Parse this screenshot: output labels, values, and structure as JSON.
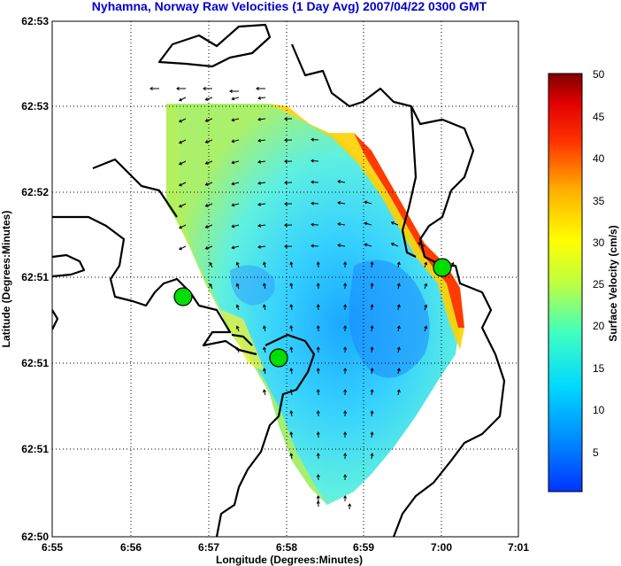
{
  "title": "Nyhamna, Norway Raw Velocities (1 Day Avg) 2007/04/22 0300 GMT",
  "x_axis": {
    "label": "Longitude (Degrees:Minutes)",
    "ticks": [
      "6:55",
      "6:56",
      "6:57",
      "6:58",
      "6:59",
      "7:00",
      "7:01"
    ]
  },
  "y_axis": {
    "label": "Latitude (Degrees:Minutes)",
    "ticks": [
      "62:50",
      "62:51",
      "62:51",
      "62:51",
      "62:52",
      "62:53",
      "62:53"
    ]
  },
  "colorbar": {
    "label": "Surface Velocity (cm/s)",
    "ticks": [
      "5",
      "10",
      "15",
      "20",
      "25",
      "30",
      "35",
      "40",
      "45",
      "50"
    ],
    "range": [
      0,
      50
    ],
    "colormap": "jet",
    "stops": [
      "#00008f",
      "#0000ff",
      "#00ffff",
      "#ffff00",
      "#ff0000",
      "#800000"
    ]
  },
  "grid": true,
  "colors": {
    "title": "#0000cc",
    "station": "#00dd00",
    "coastline": "#000000"
  },
  "stations": [
    {
      "name": "station-west",
      "lon": "6:56.7",
      "lat": "62:51.2"
    },
    {
      "name": "station-south",
      "lon": "6:57.9",
      "lat": "62:50.9"
    },
    {
      "name": "station-east",
      "lon": "7:00.0",
      "lat": "62:51.4"
    }
  ],
  "chart_data": {
    "type": "heatmap",
    "title": "Nyhamna, Norway Raw Velocities (1 Day Avg) 2007/04/22 0300 GMT",
    "xlabel": "Longitude (Degrees:Minutes)",
    "ylabel": "Latitude (Degrees:Minutes)",
    "colorbar_label": "Surface Velocity (cm/s)",
    "value_range": [
      0,
      50
    ],
    "field_summary": {
      "interior_min_cm_s": 7,
      "typical_interior_cm_s": 13,
      "east_boundary_max_cm_s": 45,
      "western_edge_cm_s": 20
    }
  }
}
